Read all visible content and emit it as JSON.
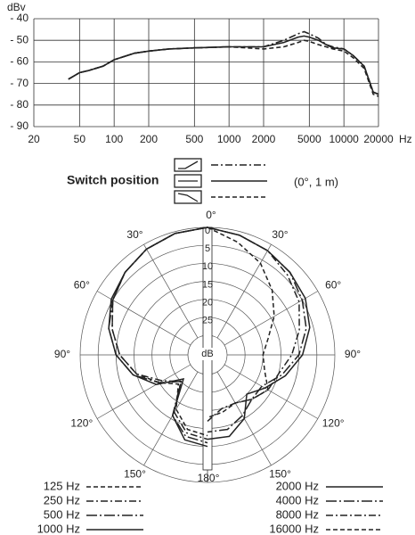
{
  "chart_data": [
    {
      "type": "line",
      "ylabel": "dBv",
      "xlabel": "Hz",
      "xscale": "log",
      "legend_title": "Switch position",
      "legend_note": "(0°, 1 m)",
      "x": [
        40,
        50,
        60,
        80,
        100,
        150,
        200,
        300,
        500,
        1000,
        2000,
        3000,
        4000,
        4500,
        5000,
        6000,
        7000,
        8000,
        10000,
        12000,
        15000,
        18000,
        20000
      ],
      "series": [
        {
          "color": "#222",
          "dash": "dash-dot",
          "values": [
            -68,
            -65,
            -64,
            -62,
            -59,
            -56,
            -55,
            -54,
            -53.5,
            -53,
            -53,
            -50,
            -47,
            -46,
            -47,
            -49,
            -52,
            -53,
            -54,
            -57,
            -62,
            -74,
            -75
          ]
        },
        {
          "color": "#222",
          "dash": "solid",
          "values": [
            -68,
            -65,
            -64,
            -62,
            -59,
            -56,
            -55,
            -54,
            -53.5,
            -53,
            -53,
            -51,
            -48.5,
            -48,
            -48.5,
            -50,
            -52,
            -53.5,
            -54,
            -57,
            -62,
            -74,
            -75
          ]
        },
        {
          "color": "#222",
          "dash": "dash",
          "values": [
            -68,
            -65,
            -64,
            -62,
            -59,
            -56,
            -55,
            -54,
            -53.5,
            -53,
            -54,
            -53,
            -51,
            -50,
            -50.5,
            -52,
            -53,
            -54,
            -55,
            -58,
            -63,
            -75,
            -76
          ]
        }
      ],
      "xlim": [
        20,
        20000
      ],
      "xticks": [
        20,
        50,
        100,
        200,
        500,
        1000,
        2000,
        5000,
        10000,
        20000
      ],
      "ylim": [
        -90,
        -40
      ],
      "yticks": [
        {
          "value": -40,
          "label": "- 40"
        },
        {
          "value": -50,
          "label": "- 50"
        },
        {
          "value": -60,
          "label": "- 60"
        },
        {
          "value": -70,
          "label": "- 70"
        },
        {
          "value": -80,
          "label": "- 80"
        },
        {
          "value": -90,
          "label": "- 90"
        }
      ],
      "grid": true
    },
    {
      "type": "polar",
      "rlabel": "dB",
      "theta": [
        0,
        15,
        30,
        45,
        60,
        75,
        90,
        105,
        120,
        135,
        150,
        165,
        180
      ],
      "thetaticks": [
        {
          "value": 0,
          "label": "0°"
        },
        {
          "value": 30,
          "label": "30°"
        },
        {
          "value": 60,
          "label": "60°"
        },
        {
          "value": 90,
          "label": "90°"
        },
        {
          "value": 120,
          "label": "120°"
        },
        {
          "value": 150,
          "label": "150°"
        },
        {
          "value": 180,
          "label": "180°"
        }
      ],
      "rlim": [
        0,
        30
      ],
      "rticks": [
        0,
        5,
        10,
        15,
        20,
        25
      ],
      "series": [
        {
          "name": "125  Hz",
          "half": "left",
          "color": "#222",
          "dash": "dash",
          "values": [
            0,
            0.5,
            1.5,
            3,
            5,
            8,
            11,
            15,
            20,
            24,
            18,
            14,
            13
          ]
        },
        {
          "name": "250  Hz",
          "half": "left",
          "color": "#222",
          "dash": "dash-dot",
          "values": [
            0,
            0.5,
            1.5,
            3,
            5,
            8,
            11,
            15,
            21,
            25,
            17,
            13,
            12
          ]
        },
        {
          "name": "500  Hz",
          "half": "left",
          "color": "#222",
          "dash": "long-dash-dot",
          "values": [
            0,
            0.5,
            1.5,
            3,
            5,
            7,
            10,
            14,
            20,
            25,
            16,
            12,
            11
          ]
        },
        {
          "name": "1000  Hz",
          "half": "left",
          "color": "#222",
          "dash": "solid",
          "values": [
            0,
            0.5,
            1.5,
            3,
            4.5,
            7,
            10,
            14,
            19,
            26,
            16,
            11,
            10
          ]
        },
        {
          "name": "2000  Hz",
          "half": "right",
          "color": "#222",
          "dash": "solid",
          "values": [
            0,
            1,
            2,
            3,
            4,
            6,
            9,
            13,
            17,
            20,
            15,
            12,
            12
          ]
        },
        {
          "name": "4000  Hz",
          "half": "right",
          "color": "#222",
          "dash": "long-dash-dot",
          "values": [
            0,
            1,
            2,
            3,
            5,
            7,
            10,
            14,
            18,
            18,
            16,
            14,
            14
          ]
        },
        {
          "name": "8000  Hz",
          "half": "right",
          "color": "#222",
          "dash": "dash-dot",
          "values": [
            0,
            1,
            2,
            4,
            6,
            9,
            12,
            15,
            16,
            18,
            20,
            20,
            17
          ]
        },
        {
          "name": "16000  Hz",
          "half": "right",
          "color": "#222",
          "dash": "dash",
          "values": [
            0,
            3,
            6,
            10,
            14,
            18,
            20,
            19,
            16,
            18,
            20,
            19,
            18
          ]
        }
      ]
    }
  ]
}
